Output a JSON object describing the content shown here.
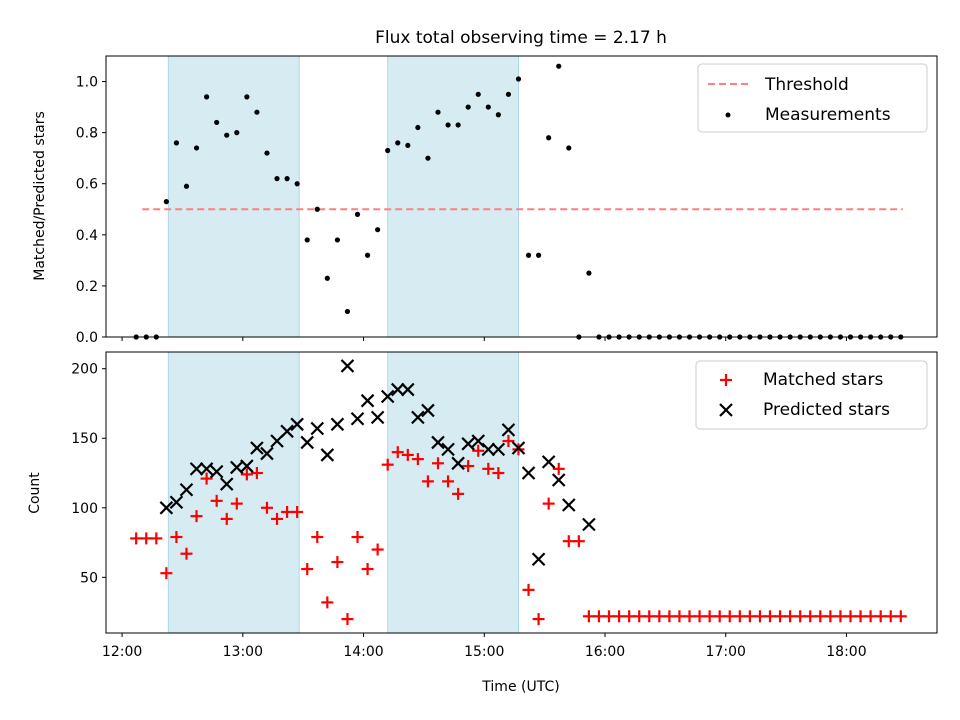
{
  "chart_data": [
    {
      "type": "scatter",
      "title": "Flux total observing time = 2.17 h",
      "xlabel": "",
      "ylabel": "Matched/Predicted stars",
      "xlim": [
        "11:52",
        "18:45"
      ],
      "ylim": [
        0,
        1.1
      ],
      "yticks": [
        0.0,
        0.2,
        0.4,
        0.6,
        0.8,
        1.0
      ],
      "ytick_labels": [
        "0.0",
        "0.2",
        "0.4",
        "0.6",
        "0.8",
        "1.0"
      ],
      "shaded_intervals": [
        [
          "12:23",
          "13:28"
        ],
        [
          "14:12",
          "15:17"
        ]
      ],
      "threshold": {
        "name": "Threshold",
        "y": 0.5,
        "x_start": "12:10",
        "x_end": "18:28",
        "color": "#ff7f7f"
      },
      "series": [
        {
          "name": "Measurements",
          "color": "#000000",
          "marker": "dot",
          "x": [
            "12:07",
            "12:12",
            "12:17",
            "12:22",
            "12:27",
            "12:32",
            "12:37",
            "12:42",
            "12:47",
            "12:52",
            "12:57",
            "13:02",
            "13:07",
            "13:12",
            "13:17",
            "13:22",
            "13:27",
            "13:32",
            "13:37",
            "13:42",
            "13:47",
            "13:52",
            "13:57",
            "14:02",
            "14:07",
            "14:12",
            "14:17",
            "14:22",
            "14:27",
            "14:32",
            "14:37",
            "14:42",
            "14:47",
            "14:52",
            "14:57",
            "15:02",
            "15:07",
            "15:12",
            "15:17",
            "15:22",
            "15:27",
            "15:32",
            "15:37",
            "15:42",
            "15:47",
            "15:52",
            "15:57",
            "16:02",
            "16:07",
            "16:12",
            "16:17",
            "16:22",
            "16:27",
            "16:32",
            "16:37",
            "16:42",
            "16:47",
            "16:52",
            "16:57",
            "17:02",
            "17:07",
            "17:12",
            "17:17",
            "17:22",
            "17:27",
            "17:32",
            "17:37",
            "17:42",
            "17:47",
            "17:52",
            "17:57",
            "18:02",
            "18:07",
            "18:12",
            "18:17",
            "18:22",
            "18:27"
          ],
          "y": [
            0,
            0,
            0,
            0.53,
            0.76,
            0.59,
            0.74,
            0.94,
            0.84,
            0.79,
            0.8,
            0.94,
            0.88,
            0.72,
            0.62,
            0.62,
            0.6,
            0.38,
            0.5,
            0.23,
            0.38,
            0.1,
            0.48,
            0.32,
            0.42,
            0.73,
            0.76,
            0.75,
            0.82,
            0.7,
            0.88,
            0.83,
            0.83,
            0.9,
            0.95,
            0.9,
            0.87,
            0.95,
            1.01,
            0.32,
            0.32,
            0.78,
            1.06,
            0.74,
            0,
            0.25,
            0,
            0,
            0,
            0,
            0,
            0,
            0,
            0,
            0,
            0,
            0,
            0,
            0,
            0,
            0,
            0,
            0,
            0,
            0,
            0,
            0,
            0,
            0,
            0,
            0,
            0,
            0,
            0,
            0,
            0,
            0
          ]
        }
      ],
      "legend": {
        "position": "upper right",
        "entries": [
          "Threshold",
          "Measurements"
        ]
      }
    },
    {
      "type": "scatter",
      "xlabel": "Time (UTC)",
      "ylabel": "Count",
      "xlim": [
        "11:52",
        "18:45"
      ],
      "ylim": [
        10,
        212
      ],
      "yticks": [
        50,
        100,
        150,
        200
      ],
      "ytick_labels": [
        "50",
        "100",
        "150",
        "200"
      ],
      "xticks": [
        "12:00",
        "13:00",
        "14:00",
        "15:00",
        "16:00",
        "17:00",
        "18:00"
      ],
      "shaded_intervals": [
        [
          "12:23",
          "13:28"
        ],
        [
          "14:12",
          "15:17"
        ]
      ],
      "series": [
        {
          "name": "Matched stars",
          "color": "#ff0000",
          "marker": "plus",
          "x": [
            "12:07",
            "12:12",
            "12:17",
            "12:22",
            "12:27",
            "12:32",
            "12:37",
            "12:42",
            "12:47",
            "12:52",
            "12:57",
            "13:02",
            "13:07",
            "13:12",
            "13:17",
            "13:22",
            "13:27",
            "13:32",
            "13:37",
            "13:42",
            "13:47",
            "13:52",
            "13:57",
            "14:02",
            "14:07",
            "14:12",
            "14:17",
            "14:22",
            "14:27",
            "14:32",
            "14:37",
            "14:42",
            "14:47",
            "14:52",
            "14:57",
            "15:02",
            "15:07",
            "15:12",
            "15:17",
            "15:22",
            "15:27",
            "15:32",
            "15:37",
            "15:42",
            "15:47",
            "15:52",
            "15:57",
            "16:02",
            "16:07",
            "16:12",
            "16:17",
            "16:22",
            "16:27",
            "16:32",
            "16:37",
            "16:42",
            "16:47",
            "16:52",
            "16:57",
            "17:02",
            "17:07",
            "17:12",
            "17:17",
            "17:22",
            "17:27",
            "17:32",
            "17:37",
            "17:42",
            "17:47",
            "17:52",
            "17:57",
            "18:02",
            "18:07",
            "18:12",
            "18:17",
            "18:22",
            "18:27"
          ],
          "y": [
            78,
            78,
            78,
            53,
            79,
            67,
            94,
            121,
            105,
            92,
            103,
            124,
            125,
            100,
            92,
            97,
            97,
            56,
            79,
            32,
            61,
            20,
            79,
            56,
            70,
            131,
            140,
            138,
            135,
            119,
            132,
            119,
            110,
            130,
            141,
            128,
            125,
            148,
            142,
            41,
            20,
            103,
            128,
            76,
            76,
            22,
            22,
            22,
            22,
            22,
            22,
            22,
            22,
            22,
            22,
            22,
            22,
            22,
            22,
            22,
            22,
            22,
            22,
            22,
            22,
            22,
            22,
            22,
            22,
            22,
            22,
            22,
            22,
            22,
            22,
            22,
            22
          ]
        },
        {
          "name": "Predicted stars",
          "color": "#000000",
          "marker": "x",
          "x": [
            "12:22",
            "12:27",
            "12:32",
            "12:37",
            "12:42",
            "12:47",
            "12:52",
            "12:57",
            "13:02",
            "13:07",
            "13:12",
            "13:17",
            "13:22",
            "13:27",
            "13:32",
            "13:37",
            "13:42",
            "13:47",
            "13:52",
            "13:57",
            "14:02",
            "14:07",
            "14:12",
            "14:17",
            "14:22",
            "14:27",
            "14:32",
            "14:37",
            "14:42",
            "14:47",
            "14:52",
            "14:57",
            "15:02",
            "15:07",
            "15:12",
            "15:17",
            "15:22",
            "15:27",
            "15:32",
            "15:37",
            "15:42",
            "15:52"
          ],
          "y": [
            100,
            104,
            113,
            128,
            128,
            126,
            117,
            129,
            130,
            143,
            139,
            148,
            155,
            160,
            147,
            157,
            138,
            160,
            202,
            164,
            177,
            165,
            180,
            185,
            185,
            165,
            170,
            147,
            142,
            132,
            146,
            148,
            142,
            142,
            156,
            143,
            125,
            63,
            133,
            120,
            102,
            88
          ]
        }
      ],
      "legend": {
        "position": "upper right",
        "entries": [
          "Matched stars",
          "Predicted stars"
        ]
      }
    }
  ],
  "colors": {
    "shade": "#add8e6",
    "threshold": "#ff7f7f",
    "matched": "#ff0000",
    "predicted": "#000000"
  }
}
